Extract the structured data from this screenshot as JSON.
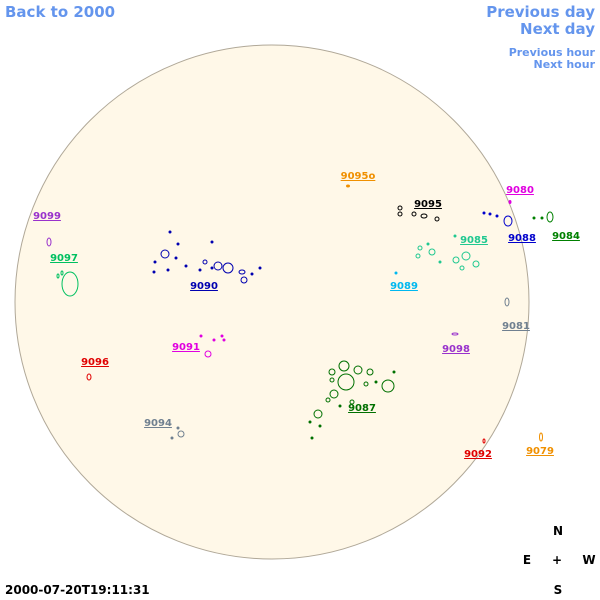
{
  "nav": {
    "back": "Back to 2000",
    "previous_day": "Previous day",
    "next_day": "Next day",
    "previous_hour": "Previous hour",
    "next_hour": "Next hour"
  },
  "regions": [
    {
      "label": "9095o",
      "color": "#f09000"
    },
    {
      "label": "9095",
      "color": "#000000"
    },
    {
      "label": "9080",
      "color": "#e000e0"
    },
    {
      "label": "9099",
      "color": "#9932cc"
    },
    {
      "label": "9085",
      "color": "#20c890"
    },
    {
      "label": "9088",
      "color": "#0000cc"
    },
    {
      "label": "9084",
      "color": "#008000"
    },
    {
      "label": "9097",
      "color": "#00c060"
    },
    {
      "label": "9090",
      "color": "#0000b0"
    },
    {
      "label": "9089",
      "color": "#00b8f0"
    },
    {
      "label": "9081",
      "color": "#708090"
    },
    {
      "label": "9091",
      "color": "#e000e0"
    },
    {
      "label": "9098",
      "color": "#9932cc"
    },
    {
      "label": "9096",
      "color": "#e00000"
    },
    {
      "label": "9087",
      "color": "#007000"
    },
    {
      "label": "9094",
      "color": "#708090"
    },
    {
      "label": "9092",
      "color": "#e00000"
    },
    {
      "label": "9079",
      "color": "#f09000"
    }
  ],
  "compass": {
    "north": "N",
    "east": "E",
    "center": "+",
    "west": "W",
    "south": "S"
  },
  "timestamp": "2000-07-20T19:11:31"
}
